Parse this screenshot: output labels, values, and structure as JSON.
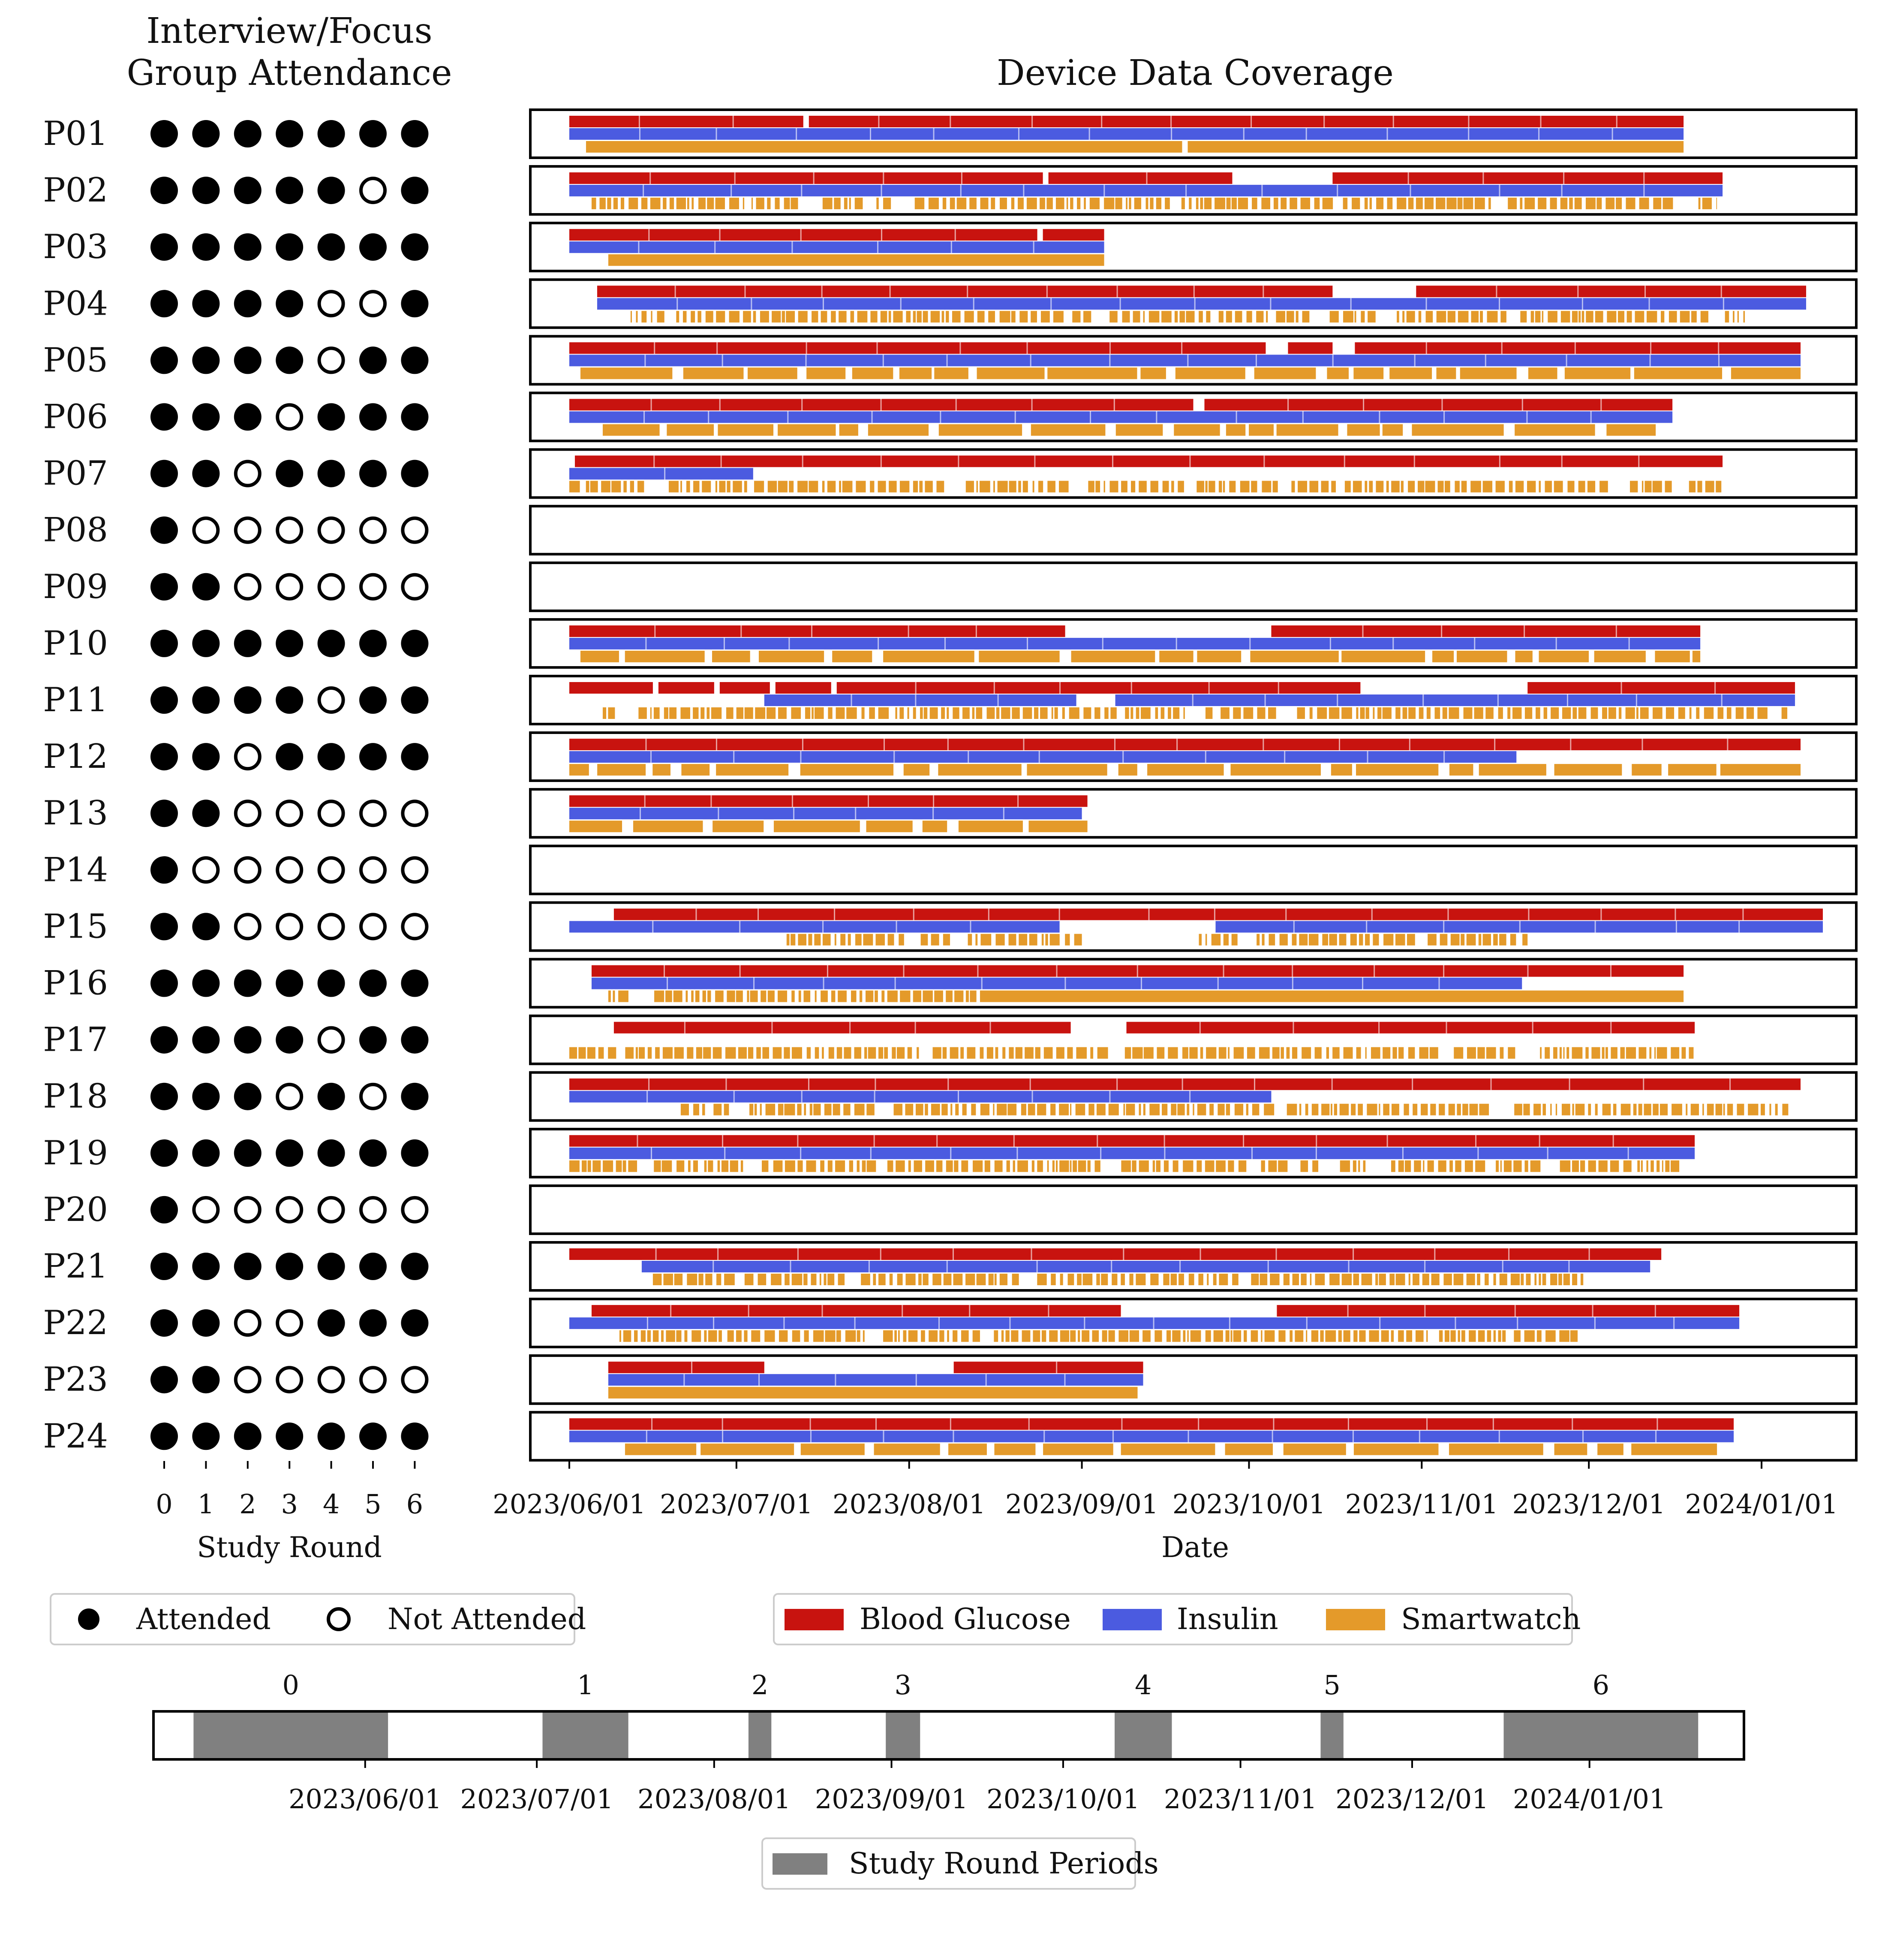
{
  "chart_data": [
    {
      "type": "dot_matrix",
      "title": "Interview/Focus\nGroup Attendance",
      "xlabel": "Study Round",
      "x_ticks": [
        "0",
        "1",
        "2",
        "3",
        "4",
        "5",
        "6"
      ],
      "participants": [
        "P01",
        "P02",
        "P03",
        "P04",
        "P05",
        "P06",
        "P07",
        "P08",
        "P09",
        "P10",
        "P11",
        "P12",
        "P13",
        "P14",
        "P15",
        "P16",
        "P17",
        "P18",
        "P19",
        "P20",
        "P21",
        "P22",
        "P23",
        "P24"
      ],
      "attendance": [
        [
          1,
          1,
          1,
          1,
          1,
          1,
          1
        ],
        [
          1,
          1,
          1,
          1,
          1,
          0,
          1
        ],
        [
          1,
          1,
          1,
          1,
          1,
          1,
          1
        ],
        [
          1,
          1,
          1,
          1,
          0,
          0,
          1
        ],
        [
          1,
          1,
          1,
          1,
          0,
          1,
          1
        ],
        [
          1,
          1,
          1,
          0,
          1,
          1,
          1
        ],
        [
          1,
          1,
          0,
          1,
          1,
          1,
          1
        ],
        [
          1,
          0,
          0,
          0,
          0,
          0,
          0
        ],
        [
          1,
          1,
          0,
          0,
          0,
          0,
          0
        ],
        [
          1,
          1,
          1,
          1,
          1,
          1,
          1
        ],
        [
          1,
          1,
          1,
          1,
          0,
          1,
          1
        ],
        [
          1,
          1,
          0,
          1,
          1,
          1,
          1
        ],
        [
          1,
          1,
          0,
          0,
          0,
          0,
          0
        ],
        [
          1,
          0,
          0,
          0,
          0,
          0,
          0
        ],
        [
          1,
          1,
          0,
          0,
          0,
          0,
          0
        ],
        [
          1,
          1,
          1,
          1,
          1,
          1,
          1
        ],
        [
          1,
          1,
          1,
          1,
          0,
          1,
          1
        ],
        [
          1,
          1,
          1,
          0,
          1,
          0,
          1
        ],
        [
          1,
          1,
          1,
          1,
          1,
          1,
          1
        ],
        [
          1,
          0,
          0,
          0,
          0,
          0,
          0
        ],
        [
          1,
          1,
          1,
          1,
          1,
          1,
          1
        ],
        [
          1,
          1,
          0,
          0,
          1,
          1,
          1
        ],
        [
          1,
          1,
          0,
          0,
          0,
          0,
          0
        ],
        [
          1,
          1,
          1,
          1,
          1,
          1,
          1
        ]
      ],
      "legend": [
        {
          "label": "Attended",
          "marker": "filled"
        },
        {
          "label": "Not Attended",
          "marker": "hollow"
        }
      ]
    },
    {
      "type": "timeline",
      "title": "Device Data Coverage",
      "xlabel": "Date",
      "x_ticks": [
        "2023/06/01",
        "2023/07/01",
        "2023/08/01",
        "2023/09/01",
        "2023/10/01",
        "2023/11/01",
        "2023/12/01",
        "2024/01/01"
      ],
      "xlim": [
        "2023-05-25",
        "2024-01-18"
      ],
      "series": [
        {
          "name": "Blood Glucose",
          "color": "#C8130F"
        },
        {
          "name": "Insulin",
          "color": "#4B5BE0"
        },
        {
          "name": "Smartwatch",
          "color": "#E49A2A"
        }
      ],
      "participants": [
        {
          "id": "P01",
          "glucose": [
            [
              "2023-06-01",
              "2023-07-13"
            ],
            [
              "2023-07-14",
              "2023-12-18"
            ]
          ],
          "insulin": [
            [
              "2023-06-01",
              "2023-12-18"
            ]
          ],
          "smartwatch": [
            [
              "2023-06-04",
              "2023-09-19"
            ],
            [
              "2023-09-20",
              "2023-12-18"
            ]
          ],
          "smartwatch_style": "solid"
        },
        {
          "id": "P02",
          "glucose": [
            [
              "2023-06-01",
              "2023-08-25"
            ],
            [
              "2023-08-26",
              "2023-09-28"
            ],
            [
              "2023-10-16",
              "2023-12-25"
            ]
          ],
          "insulin": [
            [
              "2023-06-01",
              "2023-12-25"
            ]
          ],
          "smartwatch": [
            [
              "2023-06-05",
              "2023-12-24"
            ]
          ],
          "smartwatch_style": "sparse"
        },
        {
          "id": "P03",
          "glucose": [
            [
              "2023-06-01",
              "2023-08-24"
            ],
            [
              "2023-08-25",
              "2023-09-05"
            ]
          ],
          "insulin": [
            [
              "2023-06-01",
              "2023-09-05"
            ]
          ],
          "smartwatch": [
            [
              "2023-06-08",
              "2023-09-05"
            ]
          ],
          "smartwatch_style": "solid"
        },
        {
          "id": "P04",
          "glucose": [
            [
              "2023-06-06",
              "2023-10-16"
            ],
            [
              "2023-10-31",
              "2024-01-09"
            ]
          ],
          "insulin": [
            [
              "2023-06-06",
              "2024-01-09"
            ]
          ],
          "smartwatch": [
            [
              "2023-06-12",
              "2023-12-29"
            ]
          ],
          "smartwatch_style": "sparse"
        },
        {
          "id": "P05",
          "glucose": [
            [
              "2023-06-01",
              "2023-10-04"
            ],
            [
              "2023-10-08",
              "2023-10-16"
            ],
            [
              "2023-10-20",
              "2024-01-08"
            ]
          ],
          "insulin": [
            [
              "2023-06-01",
              "2024-01-08"
            ]
          ],
          "smartwatch": [
            [
              "2023-06-03",
              "2023-10-13"
            ],
            [
              "2023-10-15",
              "2024-01-08"
            ]
          ],
          "smartwatch_style": "dense"
        },
        {
          "id": "P06",
          "glucose": [
            [
              "2023-06-01",
              "2023-09-21"
            ],
            [
              "2023-09-23",
              "2023-12-16"
            ]
          ],
          "insulin": [
            [
              "2023-06-01",
              "2023-12-16"
            ]
          ],
          "smartwatch": [
            [
              "2023-06-07",
              "2023-12-13"
            ]
          ],
          "smartwatch_style": "dense"
        },
        {
          "id": "P07",
          "glucose": [
            [
              "2023-06-02",
              "2023-12-25"
            ]
          ],
          "insulin": [
            [
              "2023-06-01",
              "2023-07-04"
            ]
          ],
          "smartwatch": [
            [
              "2023-06-01",
              "2023-12-25"
            ]
          ],
          "smartwatch_style": "sparse"
        },
        {
          "id": "P08",
          "glucose": [],
          "insulin": [],
          "smartwatch": [],
          "smartwatch_style": "none"
        },
        {
          "id": "P09",
          "glucose": [],
          "insulin": [],
          "smartwatch": [],
          "smartwatch_style": "none"
        },
        {
          "id": "P10",
          "glucose": [
            [
              "2023-06-01",
              "2023-08-29"
            ],
            [
              "2023-10-05",
              "2023-12-21"
            ]
          ],
          "insulin": [
            [
              "2023-06-01",
              "2023-12-21"
            ]
          ],
          "smartwatch": [
            [
              "2023-06-03",
              "2023-12-21"
            ]
          ],
          "smartwatch_style": "dense"
        },
        {
          "id": "P11",
          "glucose": [
            [
              "2023-06-01",
              "2023-06-16"
            ],
            [
              "2023-06-17",
              "2023-06-27"
            ],
            [
              "2023-06-28",
              "2023-07-07"
            ],
            [
              "2023-07-08",
              "2023-07-18"
            ],
            [
              "2023-07-19",
              "2023-10-21"
            ],
            [
              "2023-11-20",
              "2024-01-07"
            ]
          ],
          "insulin": [
            [
              "2023-07-06",
              "2023-08-31"
            ],
            [
              "2023-09-07",
              "2024-01-07"
            ]
          ],
          "smartwatch": [
            [
              "2023-06-07",
              "2024-01-06"
            ]
          ],
          "smartwatch_style": "sparse"
        },
        {
          "id": "P12",
          "glucose": [
            [
              "2023-06-01",
              "2024-01-08"
            ]
          ],
          "insulin": [
            [
              "2023-06-01",
              "2023-11-18"
            ]
          ],
          "smartwatch": [
            [
              "2023-06-01",
              "2024-01-08"
            ]
          ],
          "smartwatch_style": "dense"
        },
        {
          "id": "P13",
          "glucose": [
            [
              "2023-06-01",
              "2023-09-02"
            ]
          ],
          "insulin": [
            [
              "2023-06-01",
              "2023-09-01"
            ]
          ],
          "smartwatch": [
            [
              "2023-06-01",
              "2023-09-02"
            ]
          ],
          "smartwatch_style": "dense"
        },
        {
          "id": "P14",
          "glucose": [],
          "insulin": [],
          "smartwatch": [],
          "smartwatch_style": "none"
        },
        {
          "id": "P15",
          "glucose": [
            [
              "2023-06-09",
              "2024-01-12"
            ]
          ],
          "insulin": [
            [
              "2023-06-01",
              "2023-08-28"
            ],
            [
              "2023-09-25",
              "2024-01-12"
            ]
          ],
          "smartwatch": [
            [
              "2023-07-10",
              "2023-09-01"
            ],
            [
              "2023-09-22",
              "2023-11-20"
            ]
          ],
          "smartwatch_style": "sparse"
        },
        {
          "id": "P16",
          "glucose": [
            [
              "2023-06-05",
              "2023-12-18"
            ]
          ],
          "insulin": [
            [
              "2023-06-05",
              "2023-11-19"
            ]
          ],
          "smartwatch": [
            [
              "2023-06-08",
              "2023-12-18"
            ]
          ],
          "smartwatch_style": "mixed"
        },
        {
          "id": "P17",
          "glucose": [
            [
              "2023-06-09",
              "2023-08-30"
            ],
            [
              "2023-09-09",
              "2023-12-20"
            ]
          ],
          "insulin": [],
          "smartwatch": [
            [
              "2023-06-01",
              "2023-12-20"
            ]
          ],
          "smartwatch_style": "sparse"
        },
        {
          "id": "P18",
          "glucose": [
            [
              "2023-06-01",
              "2024-01-08"
            ]
          ],
          "insulin": [
            [
              "2023-06-01",
              "2023-10-05"
            ]
          ],
          "smartwatch": [
            [
              "2023-06-21",
              "2024-01-08"
            ]
          ],
          "smartwatch_style": "sparse"
        },
        {
          "id": "P19",
          "glucose": [
            [
              "2023-06-01",
              "2023-12-20"
            ]
          ],
          "insulin": [
            [
              "2023-06-01",
              "2023-12-20"
            ]
          ],
          "smartwatch": [
            [
              "2023-06-01",
              "2023-12-20"
            ]
          ],
          "smartwatch_style": "sparse"
        },
        {
          "id": "P20",
          "glucose": [],
          "insulin": [],
          "smartwatch": [],
          "smartwatch_style": "none"
        },
        {
          "id": "P21",
          "glucose": [
            [
              "2023-06-01",
              "2023-12-14"
            ]
          ],
          "insulin": [
            [
              "2023-06-14",
              "2023-12-12"
            ]
          ],
          "smartwatch": [
            [
              "2023-06-16",
              "2023-11-30"
            ]
          ],
          "smartwatch_style": "sparse"
        },
        {
          "id": "P22",
          "glucose": [
            [
              "2023-06-05",
              "2023-09-08"
            ],
            [
              "2023-10-06",
              "2023-12-28"
            ]
          ],
          "insulin": [
            [
              "2023-06-01",
              "2023-12-28"
            ]
          ],
          "smartwatch": [
            [
              "2023-06-10",
              "2023-11-30"
            ]
          ],
          "smartwatch_style": "sparse"
        },
        {
          "id": "P23",
          "glucose": [
            [
              "2023-06-08",
              "2023-07-06"
            ],
            [
              "2023-08-09",
              "2023-09-12"
            ]
          ],
          "insulin": [
            [
              "2023-06-08",
              "2023-09-12"
            ]
          ],
          "smartwatch": [
            [
              "2023-06-08",
              "2023-09-11"
            ]
          ],
          "smartwatch_style": "solid"
        },
        {
          "id": "P24",
          "glucose": [
            [
              "2023-06-01",
              "2023-12-27"
            ]
          ],
          "insulin": [
            [
              "2023-06-01",
              "2023-12-27"
            ]
          ],
          "smartwatch": [
            [
              "2023-06-11",
              "2023-12-24"
            ]
          ],
          "smartwatch_style": "dense"
        }
      ]
    },
    {
      "type": "timeline",
      "title": "",
      "x_ticks": [
        "2023/06/01",
        "2023/07/01",
        "2023/08/01",
        "2023/09/01",
        "2023/10/01",
        "2023/11/01",
        "2023/12/01",
        "2024/01/01"
      ],
      "xlim": [
        "2023-04-25",
        "2024-01-28"
      ],
      "series": [
        {
          "name": "Study Round Periods",
          "color": "#808080"
        }
      ],
      "periods": [
        {
          "label": "0",
          "start": "2023-05-02",
          "end": "2023-06-05"
        },
        {
          "label": "1",
          "start": "2023-07-02",
          "end": "2023-07-17"
        },
        {
          "label": "2",
          "start": "2023-08-07",
          "end": "2023-08-11"
        },
        {
          "label": "3",
          "start": "2023-08-31",
          "end": "2023-09-06"
        },
        {
          "label": "4",
          "start": "2023-10-10",
          "end": "2023-10-20"
        },
        {
          "label": "5",
          "start": "2023-11-15",
          "end": "2023-11-19"
        },
        {
          "label": "6",
          "start": "2023-12-17",
          "end": "2024-01-20"
        }
      ]
    }
  ]
}
